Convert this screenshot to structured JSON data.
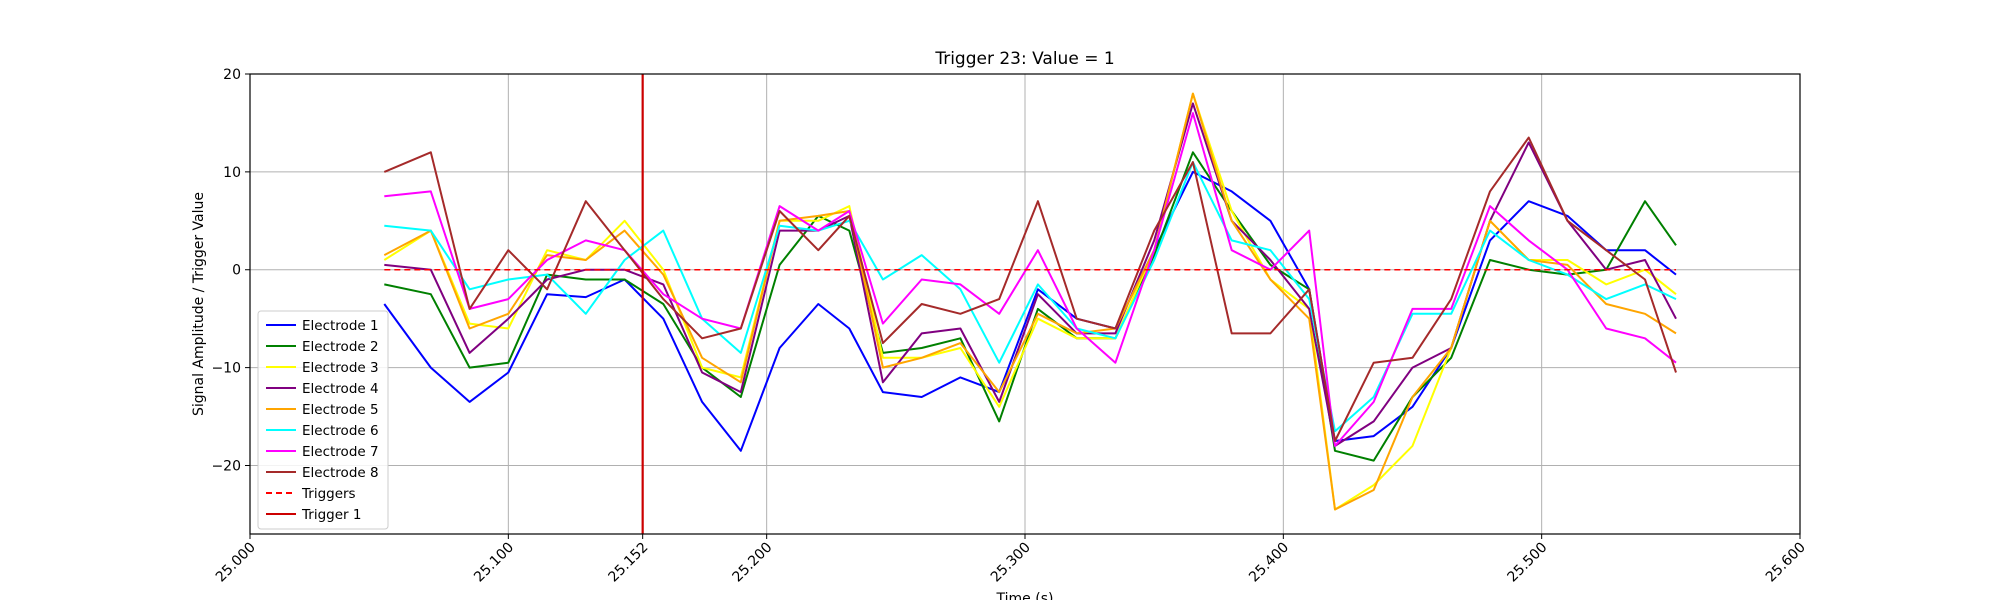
{
  "chart_data": {
    "type": "line",
    "title": "Trigger 23: Value = 1",
    "xlabel": "Time (s)",
    "ylabel": "Signal Amplitude / Trigger Value",
    "xlim": [
      25.0,
      25.6
    ],
    "ylim": [
      -27,
      20
    ],
    "grid": true,
    "legend_position": "lower-left",
    "xticks": [
      {
        "value": 25.0,
        "label": "25.000"
      },
      {
        "value": 25.1,
        "label": "25.100"
      },
      {
        "value": 25.152,
        "label": "25.152"
      },
      {
        "value": 25.2,
        "label": "25.200"
      },
      {
        "value": 25.3,
        "label": "25.300"
      },
      {
        "value": 25.4,
        "label": "25.400"
      },
      {
        "value": 25.5,
        "label": "25.500"
      },
      {
        "value": 25.6,
        "label": "25.600"
      }
    ],
    "yticks": [
      {
        "value": 20,
        "label": "20"
      },
      {
        "value": 10,
        "label": "10"
      },
      {
        "value": 0,
        "label": "0"
      },
      {
        "value": -10,
        "label": "−10"
      },
      {
        "value": -20,
        "label": "−20"
      }
    ],
    "x": [
      25.052,
      25.07,
      25.085,
      25.1,
      25.115,
      25.13,
      25.145,
      25.16,
      25.175,
      25.19,
      25.205,
      25.22,
      25.232,
      25.245,
      25.26,
      25.275,
      25.29,
      25.305,
      25.32,
      25.335,
      25.35,
      25.365,
      25.38,
      25.395,
      25.41,
      25.42,
      25.435,
      25.45,
      25.465,
      25.48,
      25.495,
      25.51,
      25.525,
      25.54,
      25.552
    ],
    "series": [
      {
        "name": "Electrode 1",
        "color": "#0000ff",
        "values": [
          -3.5,
          -10,
          -13.5,
          -10.5,
          -2.5,
          -2.8,
          -1,
          -5,
          -13.5,
          -18.5,
          -8,
          -3.5,
          -6,
          -12.5,
          -13,
          -11,
          -12.5,
          -2,
          -5,
          -6,
          2,
          10,
          8,
          5,
          -2,
          -17.5,
          -17,
          -14,
          -8,
          3,
          7,
          5.5,
          2,
          2,
          -0.5
        ]
      },
      {
        "name": "Electrode 2",
        "color": "#008000",
        "values": [
          -1.5,
          -2.5,
          -10,
          -9.5,
          -0.5,
          -1,
          -1,
          -3.5,
          -10,
          -13,
          0.5,
          5.5,
          4,
          -8.5,
          -8,
          -7,
          -15.5,
          -4,
          -7,
          -7,
          1.5,
          12,
          6,
          0.5,
          -2,
          -18.5,
          -19.5,
          -13,
          -9,
          1,
          0,
          -0.5,
          0,
          7,
          2.5
        ]
      },
      {
        "name": "Electrode 3",
        "color": "#ffff00",
        "values": [
          1,
          4,
          -5.5,
          -6,
          2,
          1,
          5,
          0,
          -10,
          -11,
          5,
          5,
          6.5,
          -9,
          -9,
          -8,
          -14,
          -5,
          -7,
          -7,
          2,
          18,
          6,
          -1,
          -4,
          -24.5,
          -22,
          -18,
          -8,
          5,
          1,
          1,
          -1.5,
          0,
          -2.5
        ]
      },
      {
        "name": "Electrode 4",
        "color": "#800080",
        "values": [
          0.5,
          0,
          -8.5,
          -5,
          -1,
          0,
          0,
          -1.5,
          -10.5,
          -12.5,
          4,
          4,
          5.5,
          -11.5,
          -6.5,
          -6,
          -13.5,
          -2.5,
          -6.5,
          -6.5,
          3,
          17,
          5,
          1,
          -4,
          -18,
          -15.5,
          -10,
          -8,
          5,
          13,
          5,
          0,
          1,
          -5
        ]
      },
      {
        "name": "Electrode 5",
        "color": "#ffa500",
        "values": [
          1.5,
          4,
          -6,
          -4.5,
          1.5,
          1,
          4,
          -0.5,
          -9,
          -11.5,
          5,
          5.5,
          6,
          -10,
          -9,
          -7.5,
          -12.5,
          -4.5,
          -6.5,
          -6,
          2,
          18,
          5,
          -1,
          -5,
          -24.5,
          -22.5,
          -13,
          -8,
          5,
          1,
          0.5,
          -3.5,
          -4.5,
          -6.5
        ]
      },
      {
        "name": "Electrode 6",
        "color": "#00ffff",
        "values": [
          4.5,
          4,
          -2,
          -1,
          -0.5,
          -4.5,
          1,
          4,
          -5,
          -8.5,
          4.5,
          4,
          5,
          -1,
          1.5,
          -2,
          -9.5,
          -1.5,
          -6,
          -7,
          1,
          11,
          3,
          2,
          -3,
          -16.5,
          -13,
          -4.5,
          -4.5,
          4,
          1,
          -0.5,
          -3,
          -1.5,
          -3
        ]
      },
      {
        "name": "Electrode 7",
        "color": "#ff00ff",
        "values": [
          7.5,
          8,
          -4,
          -3,
          1,
          3,
          2,
          -2.5,
          -5,
          -6,
          6.5,
          4,
          6,
          -5.5,
          -1,
          -1.5,
          -4.5,
          2,
          -6,
          -9.5,
          2,
          16,
          2,
          0,
          4,
          -18,
          -13.5,
          -4,
          -4,
          6.5,
          3,
          0,
          -6,
          -7,
          -9.5
        ]
      },
      {
        "name": "Electrode 8",
        "color": "#a52a2a",
        "values": [
          10,
          12,
          -4,
          2,
          -2,
          7,
          2,
          -3,
          -7,
          -6,
          6,
          2,
          5.5,
          -7.5,
          -3.5,
          -4.5,
          -3,
          7,
          -5,
          -6,
          4,
          11,
          -6.5,
          -6.5,
          -2,
          -17.5,
          -9.5,
          -9,
          -3,
          8,
          13.5,
          5,
          2,
          -1,
          -10.5
        ]
      }
    ],
    "triggers_line": {
      "name": "Triggers",
      "color": "#ff0000",
      "style": "dashed",
      "value": 0,
      "x_start": 25.052,
      "x_end": 25.552
    },
    "trigger_marker": {
      "name": "Trigger 1",
      "color": "#cc0000",
      "x": 25.152
    }
  }
}
